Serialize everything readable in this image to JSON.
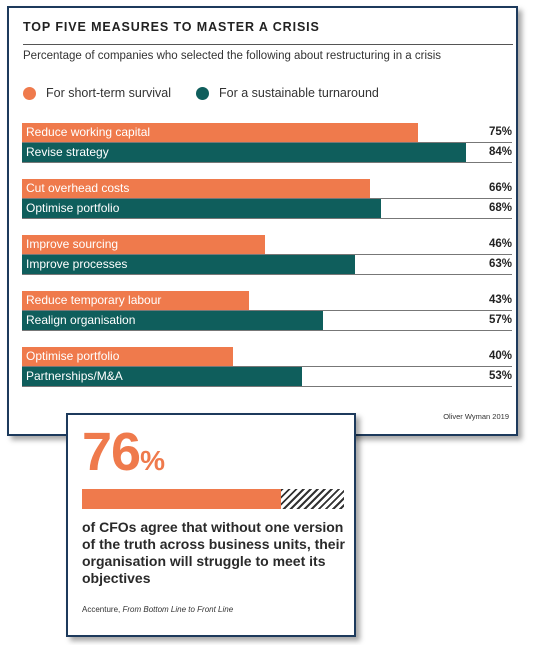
{
  "chart_card": {
    "title": "TOP FIVE MEASURES TO MASTER A CRISIS",
    "subtitle": "Percentage of companies who selected the following about restructuring in a crisis",
    "source": "Oliver Wyman 2019"
  },
  "chart_data": {
    "type": "bar",
    "orientation": "horizontal",
    "title": "TOP FIVE MEASURES TO MASTER A CRISIS",
    "subtitle": "Percentage of companies who selected the following about restructuring in a crisis",
    "xlim": [
      0,
      100
    ],
    "grid": false,
    "legend_position": "top-left",
    "series": [
      {
        "name": "For short-term survival",
        "color": "#ef7a4c",
        "labels": [
          "Reduce working capital",
          "Cut overhead costs",
          "Improve sourcing",
          "Reduce temporary labour",
          "Optimise portfolio"
        ],
        "values": [
          75,
          66,
          46,
          43,
          40
        ],
        "value_labels": [
          "75%",
          "66%",
          "46%",
          "43%",
          "40%"
        ]
      },
      {
        "name": "For a sustainable turnaround",
        "color": "#0f5e5c",
        "labels": [
          "Revise strategy",
          "Optimise portfolio",
          "Improve processes",
          "Realign organisation",
          "Partnerships/M&A"
        ],
        "values": [
          84,
          68,
          63,
          57,
          53
        ],
        "value_labels": [
          "84%",
          "68%",
          "63%",
          "57%",
          "53%"
        ]
      }
    ]
  },
  "stat_card": {
    "big_number": "76",
    "big_unit": "%",
    "progress_value": 76,
    "fill_color": "#ef7a4c",
    "text": "of CFOs agree that without one version of the truth across business units, their organisation will struggle to meet its objectives",
    "source_author": "Accenture, ",
    "source_title": "From Bottom Line to Front Line"
  }
}
